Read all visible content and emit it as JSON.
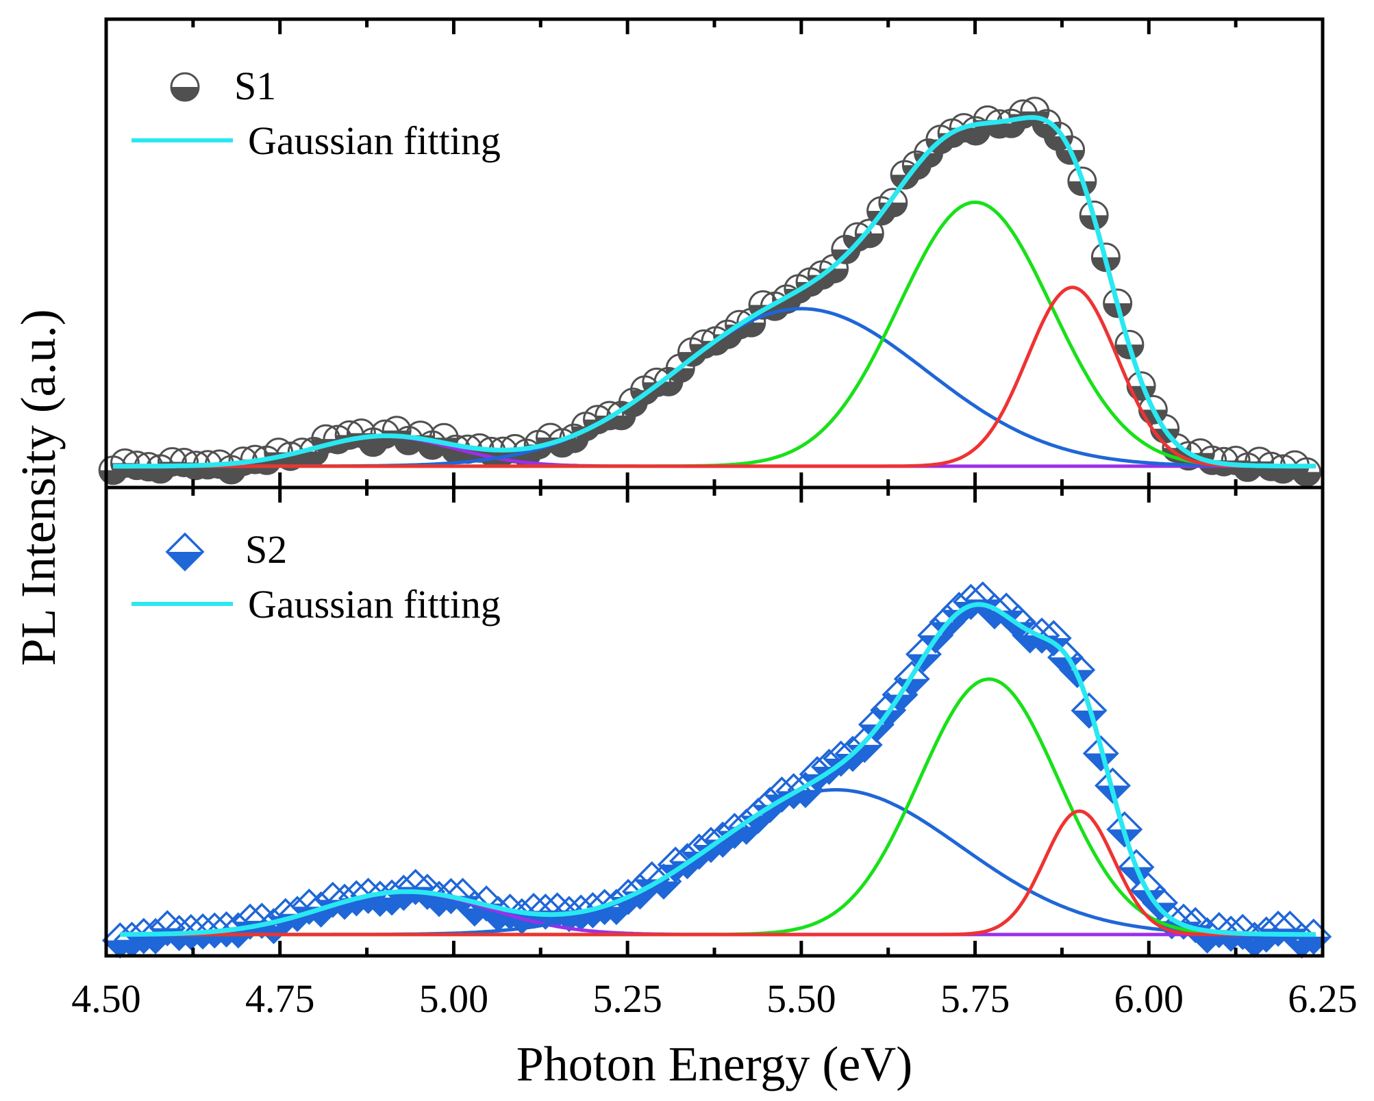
{
  "chart_data": {
    "type": "line",
    "xlabel": "Photon Energy (eV)",
    "ylabel": "PL Intensity (a.u.)",
    "xlim": [
      4.5,
      6.25
    ],
    "x_ticks": [
      "4.50",
      "4.75",
      "5.00",
      "5.25",
      "5.50",
      "5.75",
      "6.00",
      "6.25"
    ],
    "x_tick_values": [
      4.5,
      4.75,
      5.0,
      5.25,
      5.5,
      5.75,
      6.0,
      6.25
    ],
    "panels": [
      {
        "name": "S1",
        "ylim": [
          -0.05,
          1.05
        ],
        "legend": {
          "data_label": "S1",
          "fit_label": "Gaussian fitting",
          "placement": "top-left"
        },
        "marker": "half-filled-circle",
        "marker_color": "#505050",
        "x_start": 4.51,
        "x_end": 6.24,
        "x_step": 0.017,
        "components": [
          {
            "name": "peak-1",
            "center": 4.9,
            "amp": 0.07,
            "sigma": 0.1,
            "color": "#9a30e8"
          },
          {
            "name": "peak-2",
            "center": 5.5,
            "amp": 0.37,
            "sigma": 0.18,
            "color": "#1f66d8"
          },
          {
            "name": "peak-3",
            "center": 5.75,
            "amp": 0.62,
            "sigma": 0.11,
            "color": "#19e019"
          },
          {
            "name": "peak-4",
            "center": 5.89,
            "amp": 0.42,
            "sigma": 0.065,
            "color": "#ee3333"
          }
        ],
        "fit_color": "#29e8f2"
      },
      {
        "name": "S2",
        "ylim": [
          -0.05,
          1.05
        ],
        "legend": {
          "data_label": "S2",
          "fit_label": "Gaussian fitting",
          "placement": "top-left"
        },
        "marker": "half-filled-diamond",
        "marker_color": "#1f66d8",
        "x_start": 4.52,
        "x_end": 6.24,
        "x_step": 0.017,
        "components": [
          {
            "name": "peak-1",
            "center": 4.93,
            "amp": 0.1,
            "sigma": 0.12,
            "color": "#9a30e8"
          },
          {
            "name": "peak-2",
            "center": 5.55,
            "amp": 0.34,
            "sigma": 0.18,
            "color": "#1f66d8"
          },
          {
            "name": "peak-3",
            "center": 5.77,
            "amp": 0.6,
            "sigma": 0.1,
            "color": "#19e019"
          },
          {
            "name": "peak-4",
            "center": 5.9,
            "amp": 0.29,
            "sigma": 0.05,
            "color": "#ee3333"
          }
        ],
        "fit_color": "#29e8f2"
      }
    ]
  }
}
